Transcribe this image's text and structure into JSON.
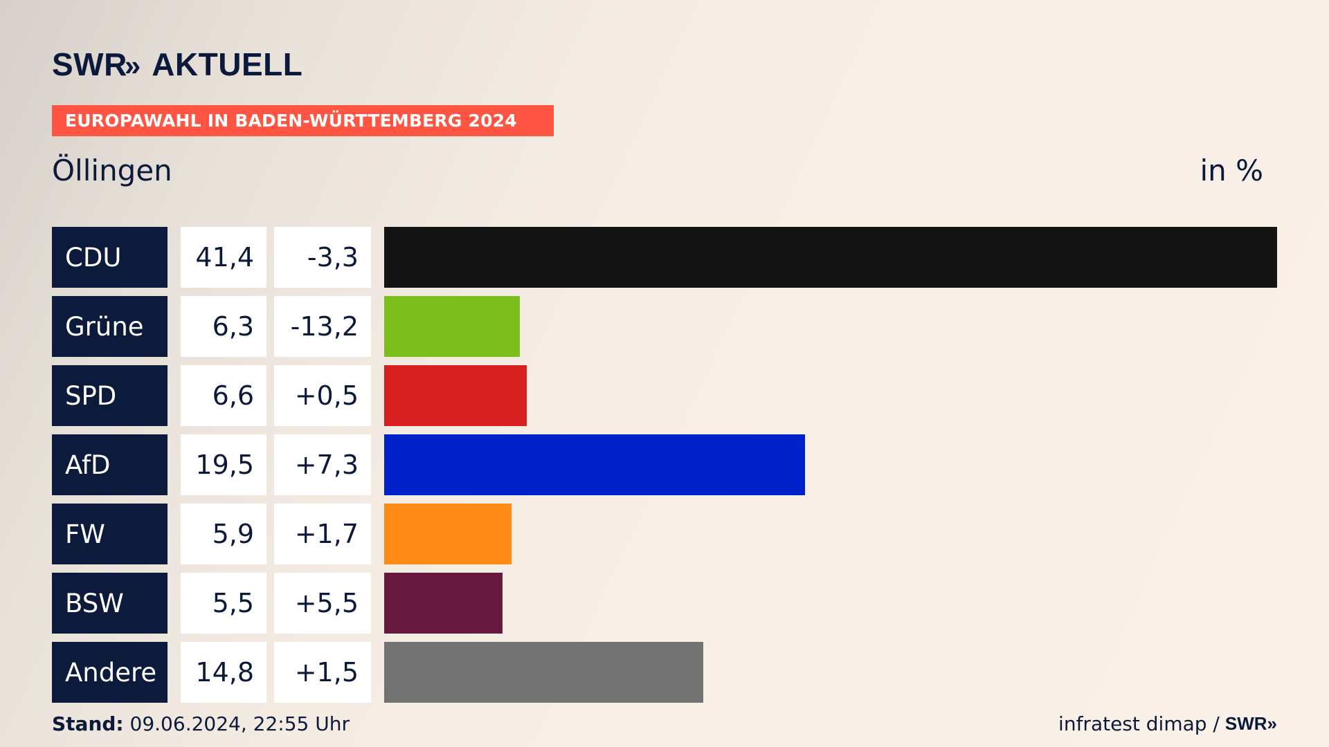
{
  "logo": {
    "brand": "SWR",
    "chevrons": "»",
    "name": "AKTUELL"
  },
  "banner": "EUROPAWAHL IN BADEN-WÜRTTEMBERG 2024",
  "place": "Öllingen",
  "unit": "in %",
  "chart_data": {
    "type": "bar",
    "orientation": "horizontal",
    "categories": [
      "CDU",
      "Grüne",
      "SPD",
      "AfD",
      "FW",
      "BSW",
      "Andere"
    ],
    "values": [
      41.4,
      6.3,
      6.6,
      19.5,
      5.9,
      5.5,
      14.8
    ],
    "value_labels": [
      "41,4",
      "6,3",
      "6,6",
      "19,5",
      "5,9",
      "5,5",
      "14,8"
    ],
    "diff_labels": [
      "-3,3",
      "-13,2",
      "+0,5",
      "+7,3",
      "+1,7",
      "+5,5",
      "+1,5"
    ],
    "colors": [
      "#141414",
      "#7cbe1e",
      "#d81f1f",
      "#0021c8",
      "#fd8b16",
      "#661a3e",
      "#727272"
    ],
    "xlim": [
      0,
      41.4
    ],
    "grid": false,
    "legend": "none"
  },
  "footer": {
    "stand_label": "Stand:",
    "stand_value": "09.06.2024, 22:55 Uhr",
    "source": "infratest dimap /",
    "source_logo": "SWR»"
  }
}
